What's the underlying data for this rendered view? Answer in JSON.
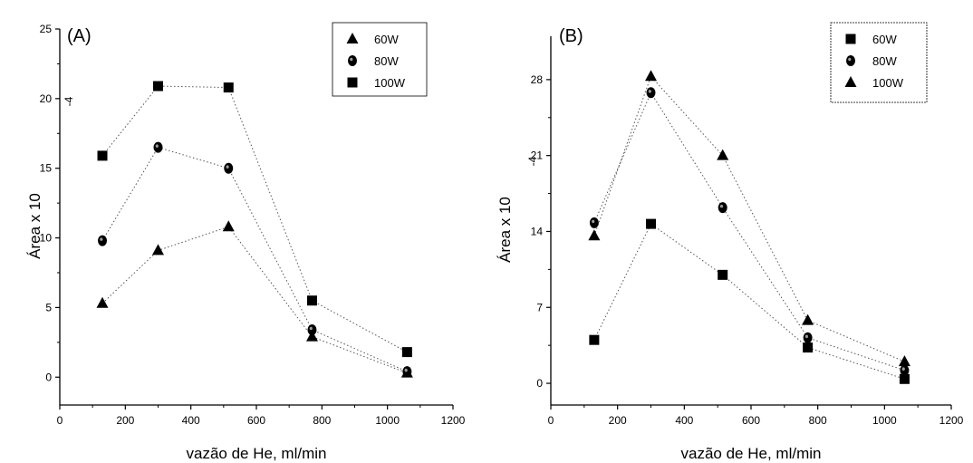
{
  "chart_data": [
    {
      "type": "scatter",
      "panel_label": "(A)",
      "xlabel": "vazão de He, ml/min",
      "ylabel": "Área x 10",
      "ylabel_exponent": "-4",
      "xlim": [
        0,
        1200
      ],
      "ylim": [
        -2,
        25
      ],
      "xticks": [
        0,
        200,
        400,
        600,
        800,
        1000,
        1200
      ],
      "yticks": [
        0,
        5,
        10,
        15,
        20,
        25
      ],
      "x": [
        130,
        300,
        515,
        770,
        1060
      ],
      "legend_position": "top-right",
      "series": [
        {
          "name": "60W",
          "marker": "triangle",
          "values": [
            5.3,
            9.1,
            10.8,
            2.9,
            0.3
          ]
        },
        {
          "name": "80W",
          "marker": "circle",
          "values": [
            9.8,
            16.5,
            15.0,
            3.4,
            0.4
          ]
        },
        {
          "name": "100W",
          "marker": "square",
          "values": [
            15.9,
            20.9,
            20.8,
            5.5,
            1.8
          ]
        }
      ]
    },
    {
      "type": "scatter",
      "panel_label": "(B)",
      "xlabel": "vazão de He, ml/min",
      "ylabel": "Área x 10",
      "ylabel_exponent": "-4",
      "xlim": [
        0,
        1200
      ],
      "ylim": [
        -2,
        32
      ],
      "xticks": [
        0,
        200,
        400,
        600,
        800,
        1000,
        1200
      ],
      "yticks": [
        0,
        7,
        14,
        21,
        28
      ],
      "x": [
        130,
        300,
        515,
        770,
        1060
      ],
      "legend_position": "top-right",
      "series": [
        {
          "name": "60W",
          "marker": "square",
          "values": [
            4.0,
            14.7,
            10.0,
            3.3,
            0.4
          ]
        },
        {
          "name": "80W",
          "marker": "circle",
          "values": [
            14.8,
            26.8,
            16.2,
            4.2,
            1.2
          ]
        },
        {
          "name": "100W",
          "marker": "triangle",
          "values": [
            13.6,
            28.3,
            21.0,
            5.8,
            2.0
          ]
        }
      ]
    }
  ]
}
